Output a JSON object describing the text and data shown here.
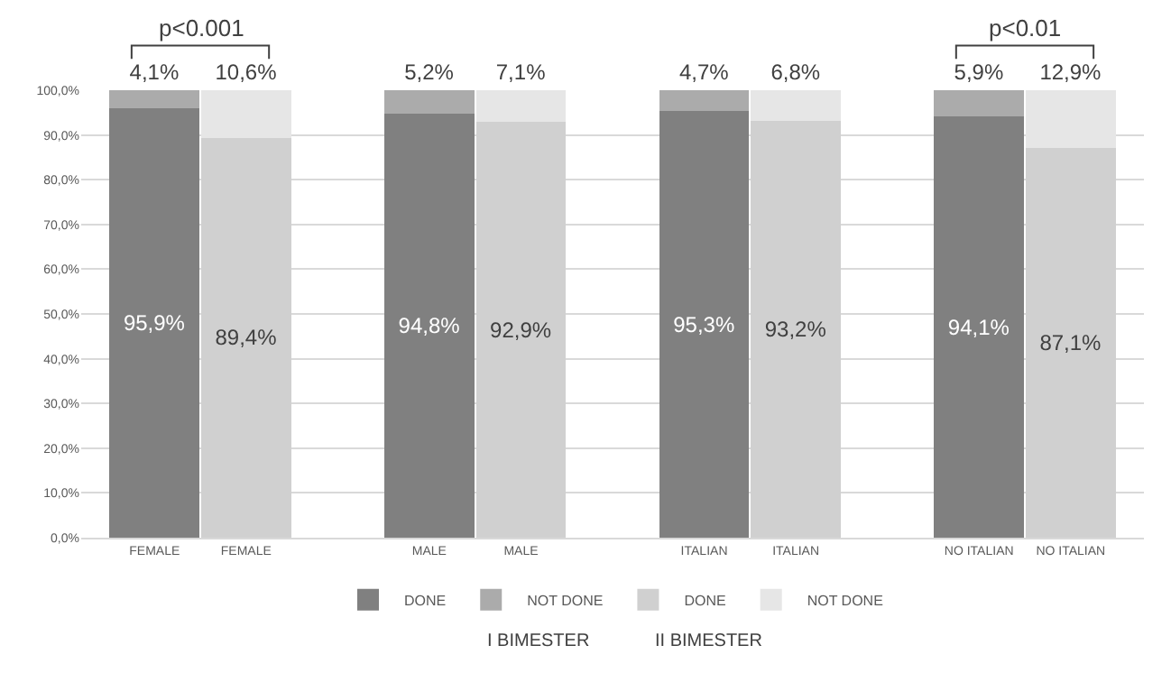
{
  "chart_data": {
    "type": "bar",
    "stacked": true,
    "grid": "y",
    "legend": "bottom",
    "categories": [
      "FEMALE",
      "FEMALE",
      null,
      "MALE",
      "MALE",
      null,
      "ITALIAN",
      "ITALIAN",
      null,
      "NO ITALIAN",
      "NO ITALIAN"
    ],
    "ylim": [
      0,
      100
    ],
    "yticks": [
      {
        "value": 0,
        "label": "0,0%"
      },
      {
        "value": 10,
        "label": "10,0%"
      },
      {
        "value": 20,
        "label": "20,0%"
      },
      {
        "value": 30,
        "label": "30,0%"
      },
      {
        "value": 40,
        "label": "40,0%"
      },
      {
        "value": 50,
        "label": "50,0%"
      },
      {
        "value": 60,
        "label": "60,0%"
      },
      {
        "value": 70,
        "label": "70,0%"
      },
      {
        "value": 80,
        "label": "80,0%"
      },
      {
        "value": 90,
        "label": "90,0%"
      },
      {
        "value": 100,
        "label": "100,0%"
      }
    ],
    "series": [
      {
        "name": "DONE",
        "color": "#808080",
        "values": [
          95.9,
          null,
          null,
          94.8,
          null,
          null,
          95.3,
          null,
          null,
          94.1,
          null
        ],
        "value_labels": [
          "95,9%",
          null,
          null,
          "94,8%",
          null,
          null,
          "95,3%",
          null,
          null,
          "94,1%",
          null
        ]
      },
      {
        "name": "NOT DONE",
        "color": "#ababab",
        "values": [
          4.1,
          null,
          null,
          5.2,
          null,
          null,
          4.7,
          null,
          null,
          5.9,
          null
        ],
        "value_labels": [
          "4,1%",
          null,
          null,
          "5,2%",
          null,
          null,
          "4,7%",
          null,
          null,
          "5,9%",
          null
        ]
      },
      {
        "name": "DONE",
        "color": "#d0d0d0",
        "values": [
          null,
          89.4,
          null,
          null,
          92.9,
          null,
          null,
          93.2,
          null,
          null,
          87.1
        ],
        "value_labels": [
          null,
          "89,4%",
          null,
          null,
          "92,9%",
          null,
          null,
          "93,2%",
          null,
          null,
          "87,1%"
        ]
      },
      {
        "name": "NOT DONE",
        "color": "#e6e6e6",
        "values": [
          null,
          10.6,
          null,
          null,
          7.1,
          null,
          null,
          6.8,
          null,
          null,
          12.9
        ],
        "value_labels": [
          null,
          "10,6%",
          null,
          null,
          "7,1%",
          null,
          null,
          "6,8%",
          null,
          null,
          "12,9%"
        ]
      }
    ],
    "annotations": [
      "p<0.001",
      "p<0.01",
      "I BIMESTER",
      "II BIMESTER"
    ]
  }
}
